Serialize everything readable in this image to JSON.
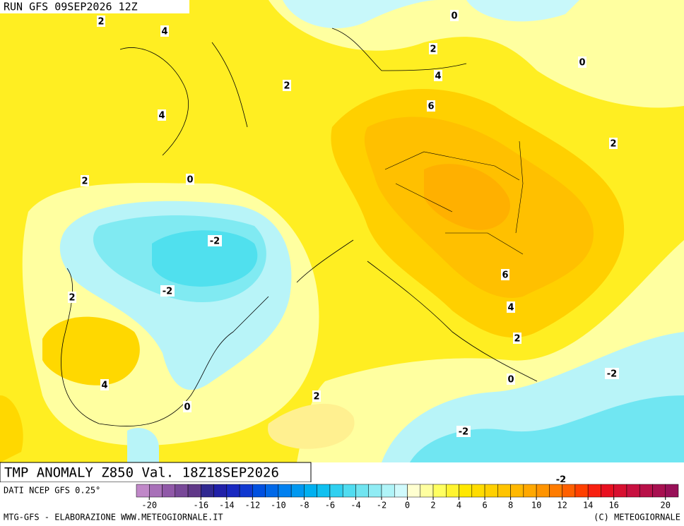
{
  "header": {
    "run": "RUN GFS 09SEP2026 12Z"
  },
  "map": {
    "title": "TMP ANOMALY Z850 Val. 18Z18SEP2026",
    "contour_labels": [
      "2",
      "4",
      "0",
      "2",
      "0",
      "4",
      "2",
      "6",
      "4",
      "2",
      "2",
      "0",
      "-2",
      "-2",
      "6",
      "2",
      "4",
      "2",
      "-2",
      "0",
      "4",
      "2",
      "0",
      "-2",
      "-2"
    ]
  },
  "legend": {
    "source": "DATI NCEP GFS 0.25°",
    "colors": [
      "#c088c8",
      "#a870b8",
      "#9058a8",
      "#784898",
      "#603888",
      "#302890",
      "#2020a8",
      "#1828c0",
      "#1038d0",
      "#0050e0",
      "#0068e8",
      "#0080f0",
      "#0098f0",
      "#00b0f0",
      "#10c0f0",
      "#30d0f0",
      "#50dcf0",
      "#70e4f0",
      "#90ecf4",
      "#b0f4f8",
      "#d0fafc",
      "#ffffd0",
      "#ffffa0",
      "#ffff60",
      "#fff430",
      "#ffe800",
      "#ffdc00",
      "#ffd000",
      "#ffc400",
      "#ffb800",
      "#ffa800",
      "#ff9400",
      "#ff7c00",
      "#ff6000",
      "#ff4000",
      "#f82010",
      "#e81020",
      "#d81030",
      "#c81040",
      "#b81048",
      "#a81050",
      "#981058"
    ],
    "ticks": [
      -20,
      -16,
      -14,
      -12,
      -10,
      -8,
      -6,
      -4,
      -2,
      0,
      2,
      4,
      6,
      8,
      10,
      12,
      14,
      16,
      20
    ]
  },
  "footer": {
    "left": "MTG-GFS - ELABORAZIONE WWW.METEOGIORNALE.IT",
    "right": "(C) METEOGIORNALE"
  }
}
